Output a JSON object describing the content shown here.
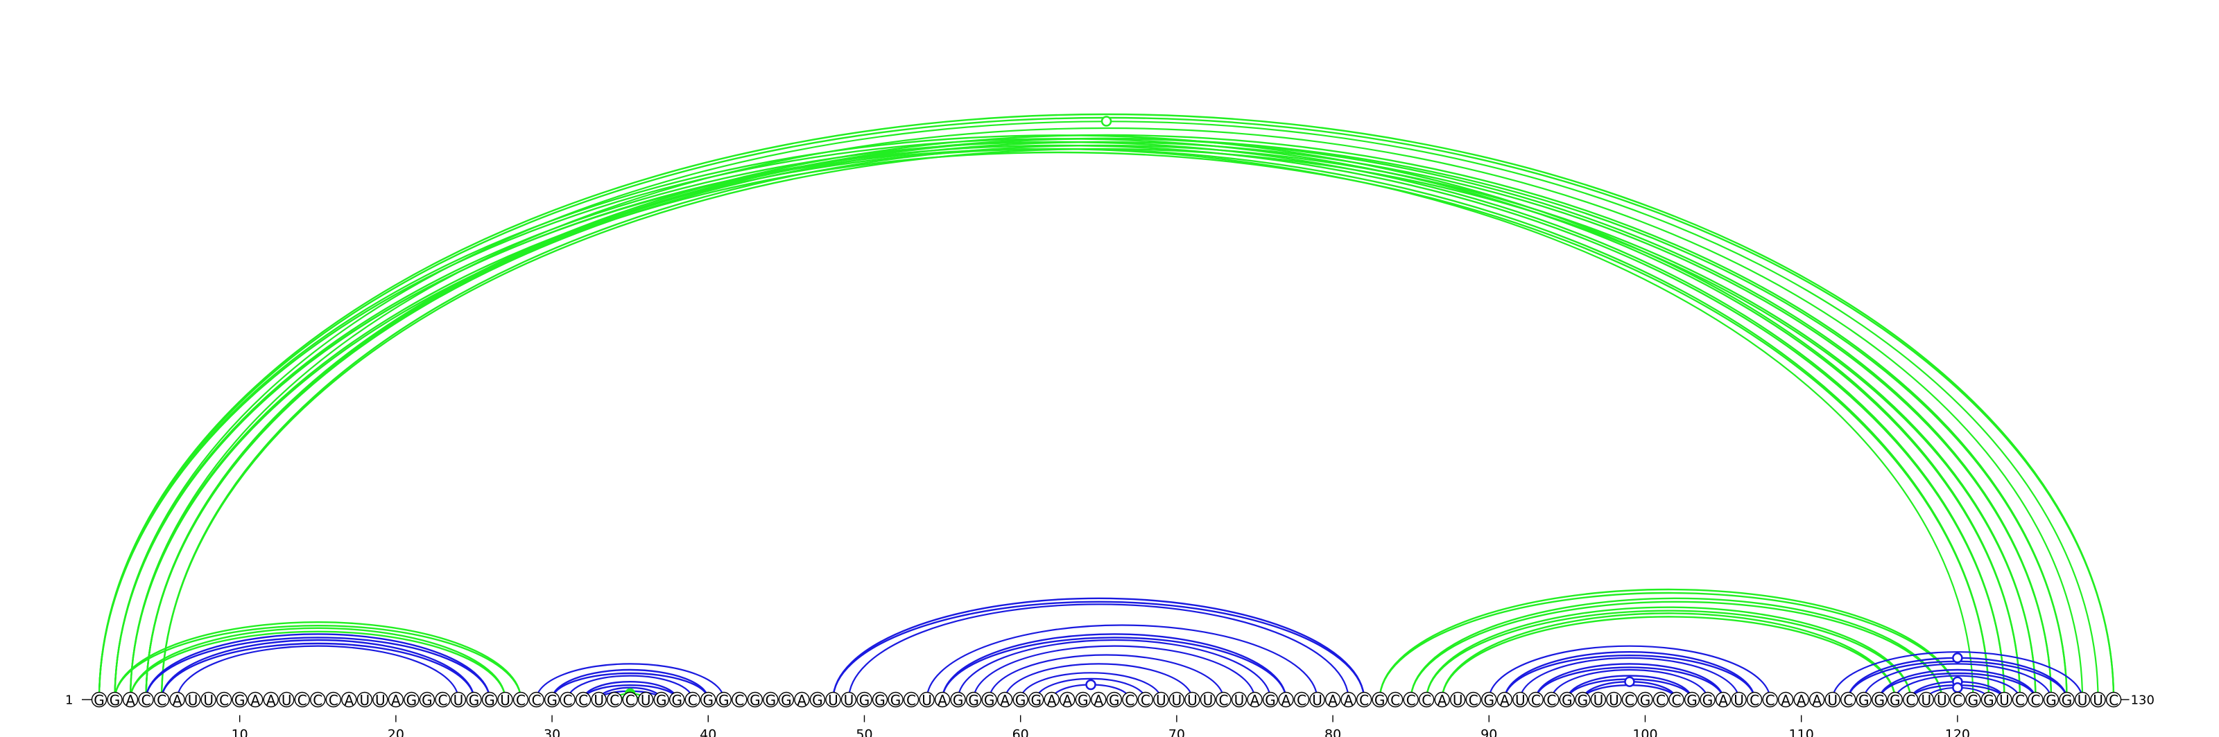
{
  "sequence": "GGACCAUUCGAAUCCCAUUAGGCUGGUCCGCCUCCUGGCGGCGGGAGUUGGGCUAGGGAGGAAGAGCCUUUUCUAGACUAACGCCCAUCGAUCCGGUUCGCCGGAUCCAAAUCGGGCUUCGGUCCGGUUC",
  "start_label": "1",
  "end_label": "130",
  "tick_numbers": [
    "10",
    "20",
    "30",
    "40",
    "50",
    "60",
    "70",
    "80",
    "90",
    "100",
    "110",
    "120"
  ],
  "colors": {
    "green": "#22ee22",
    "blue": "#1a1adf",
    "nucleotide_fill": "#ffffff",
    "nucleotide_stroke": "#000000"
  },
  "arcs": [
    {
      "i": 1,
      "j": 130,
      "color": "green",
      "doubled": true
    },
    {
      "i": 2,
      "j": 129,
      "color": "green",
      "doubled": false
    },
    {
      "i": 3,
      "j": 128,
      "color": "green",
      "doubled": false
    },
    {
      "i": 4,
      "j": 127,
      "color": "green",
      "doubled": true
    },
    {
      "i": 4,
      "j": 126,
      "color": "green",
      "doubled": true
    },
    {
      "i": 5,
      "j": 125,
      "color": "green",
      "doubled": true
    },
    {
      "i": 1,
      "j": 124,
      "color": "green",
      "doubled": true
    },
    {
      "i": 2,
      "j": 123,
      "color": "green",
      "doubled": true
    },
    {
      "i": 3,
      "j": 122,
      "color": "green",
      "doubled": true
    },
    {
      "i": 2,
      "j": 121,
      "color": "green",
      "doubled": false
    },
    {
      "i": 2,
      "j": 28,
      "color": "green",
      "doubled": true
    },
    {
      "i": 3,
      "j": 27,
      "color": "green",
      "doubled": true
    },
    {
      "i": 4,
      "j": 26,
      "color": "blue",
      "doubled": true
    },
    {
      "i": 5,
      "j": 25,
      "color": "blue",
      "doubled": true
    },
    {
      "i": 6,
      "j": 24,
      "color": "blue",
      "doubled": false
    },
    {
      "i": 29,
      "j": 41,
      "color": "blue",
      "doubled": false
    },
    {
      "i": 30,
      "j": 40,
      "color": "blue",
      "doubled": true
    },
    {
      "i": 31,
      "j": 39,
      "color": "blue",
      "doubled": false
    },
    {
      "i": 32,
      "j": 38,
      "color": "blue",
      "doubled": true
    },
    {
      "i": 33,
      "j": 37,
      "color": "blue",
      "doubled": true
    },
    {
      "i": 34,
      "j": 36,
      "color": "green",
      "doubled": true
    },
    {
      "i": 48,
      "j": 82,
      "color": "blue",
      "doubled": true
    },
    {
      "i": 49,
      "j": 81,
      "color": "blue",
      "doubled": false
    },
    {
      "i": 54,
      "j": 79,
      "color": "blue",
      "doubled": false
    },
    {
      "i": 55,
      "j": 77,
      "color": "blue",
      "doubled": true
    },
    {
      "i": 56,
      "j": 76,
      "color": "blue",
      "doubled": false
    },
    {
      "i": 57,
      "j": 75,
      "color": "blue",
      "doubled": false
    },
    {
      "i": 58,
      "j": 73,
      "color": "blue",
      "doubled": false
    },
    {
      "i": 59,
      "j": 71,
      "color": "blue",
      "doubled": false
    },
    {
      "i": 60,
      "j": 69,
      "color": "blue",
      "doubled": false
    },
    {
      "i": 61,
      "j": 68,
      "color": "blue",
      "doubled": false
    },
    {
      "i": 62,
      "j": 67,
      "color": "blue",
      "doubled": false
    },
    {
      "i": 83,
      "j": 120,
      "color": "green",
      "doubled": true
    },
    {
      "i": 85,
      "j": 119,
      "color": "green",
      "doubled": true
    },
    {
      "i": 86,
      "j": 117,
      "color": "green",
      "doubled": true
    },
    {
      "i": 87,
      "j": 116,
      "color": "green",
      "doubled": true
    },
    {
      "i": 90,
      "j": 108,
      "color": "blue",
      "doubled": false
    },
    {
      "i": 91,
      "j": 107,
      "color": "blue",
      "doubled": true
    },
    {
      "i": 92,
      "j": 106,
      "color": "blue",
      "doubled": false
    },
    {
      "i": 93,
      "j": 105,
      "color": "blue",
      "doubled": true
    },
    {
      "i": 94,
      "j": 104,
      "color": "blue",
      "doubled": false
    },
    {
      "i": 95,
      "j": 103,
      "color": "blue",
      "doubled": true
    },
    {
      "i": 96,
      "j": 102,
      "color": "blue",
      "doubled": true
    },
    {
      "i": 112,
      "j": 128,
      "color": "blue",
      "doubled": false
    },
    {
      "i": 113,
      "j": 127,
      "color": "blue",
      "doubled": true
    },
    {
      "i": 114,
      "j": 126,
      "color": "blue",
      "doubled": false
    },
    {
      "i": 115,
      "j": 125,
      "color": "blue",
      "doubled": true
    },
    {
      "i": 116,
      "j": 124,
      "color": "blue",
      "doubled": false
    },
    {
      "i": 117,
      "j": 123,
      "color": "blue",
      "doubled": true
    },
    {
      "i": 118,
      "j": 122,
      "color": "blue",
      "doubled": false
    }
  ],
  "markers": [
    {
      "arc_i": 2,
      "arc_j": 129,
      "color": "green",
      "filled": false
    },
    {
      "arc_i": 34,
      "arc_j": 36,
      "color": "green",
      "filled": true
    },
    {
      "arc_i": 62,
      "arc_j": 67,
      "color": "blue",
      "filled": false
    },
    {
      "arc_i": 96,
      "arc_j": 102,
      "color": "blue",
      "filled": false
    },
    {
      "arc_i": 113,
      "arc_j": 127,
      "color": "blue",
      "filled": false
    },
    {
      "arc_i": 117,
      "arc_j": 123,
      "color": "blue",
      "filled": false
    },
    {
      "arc_i": 118,
      "arc_j": 122,
      "color": "blue",
      "filled": false
    }
  ]
}
